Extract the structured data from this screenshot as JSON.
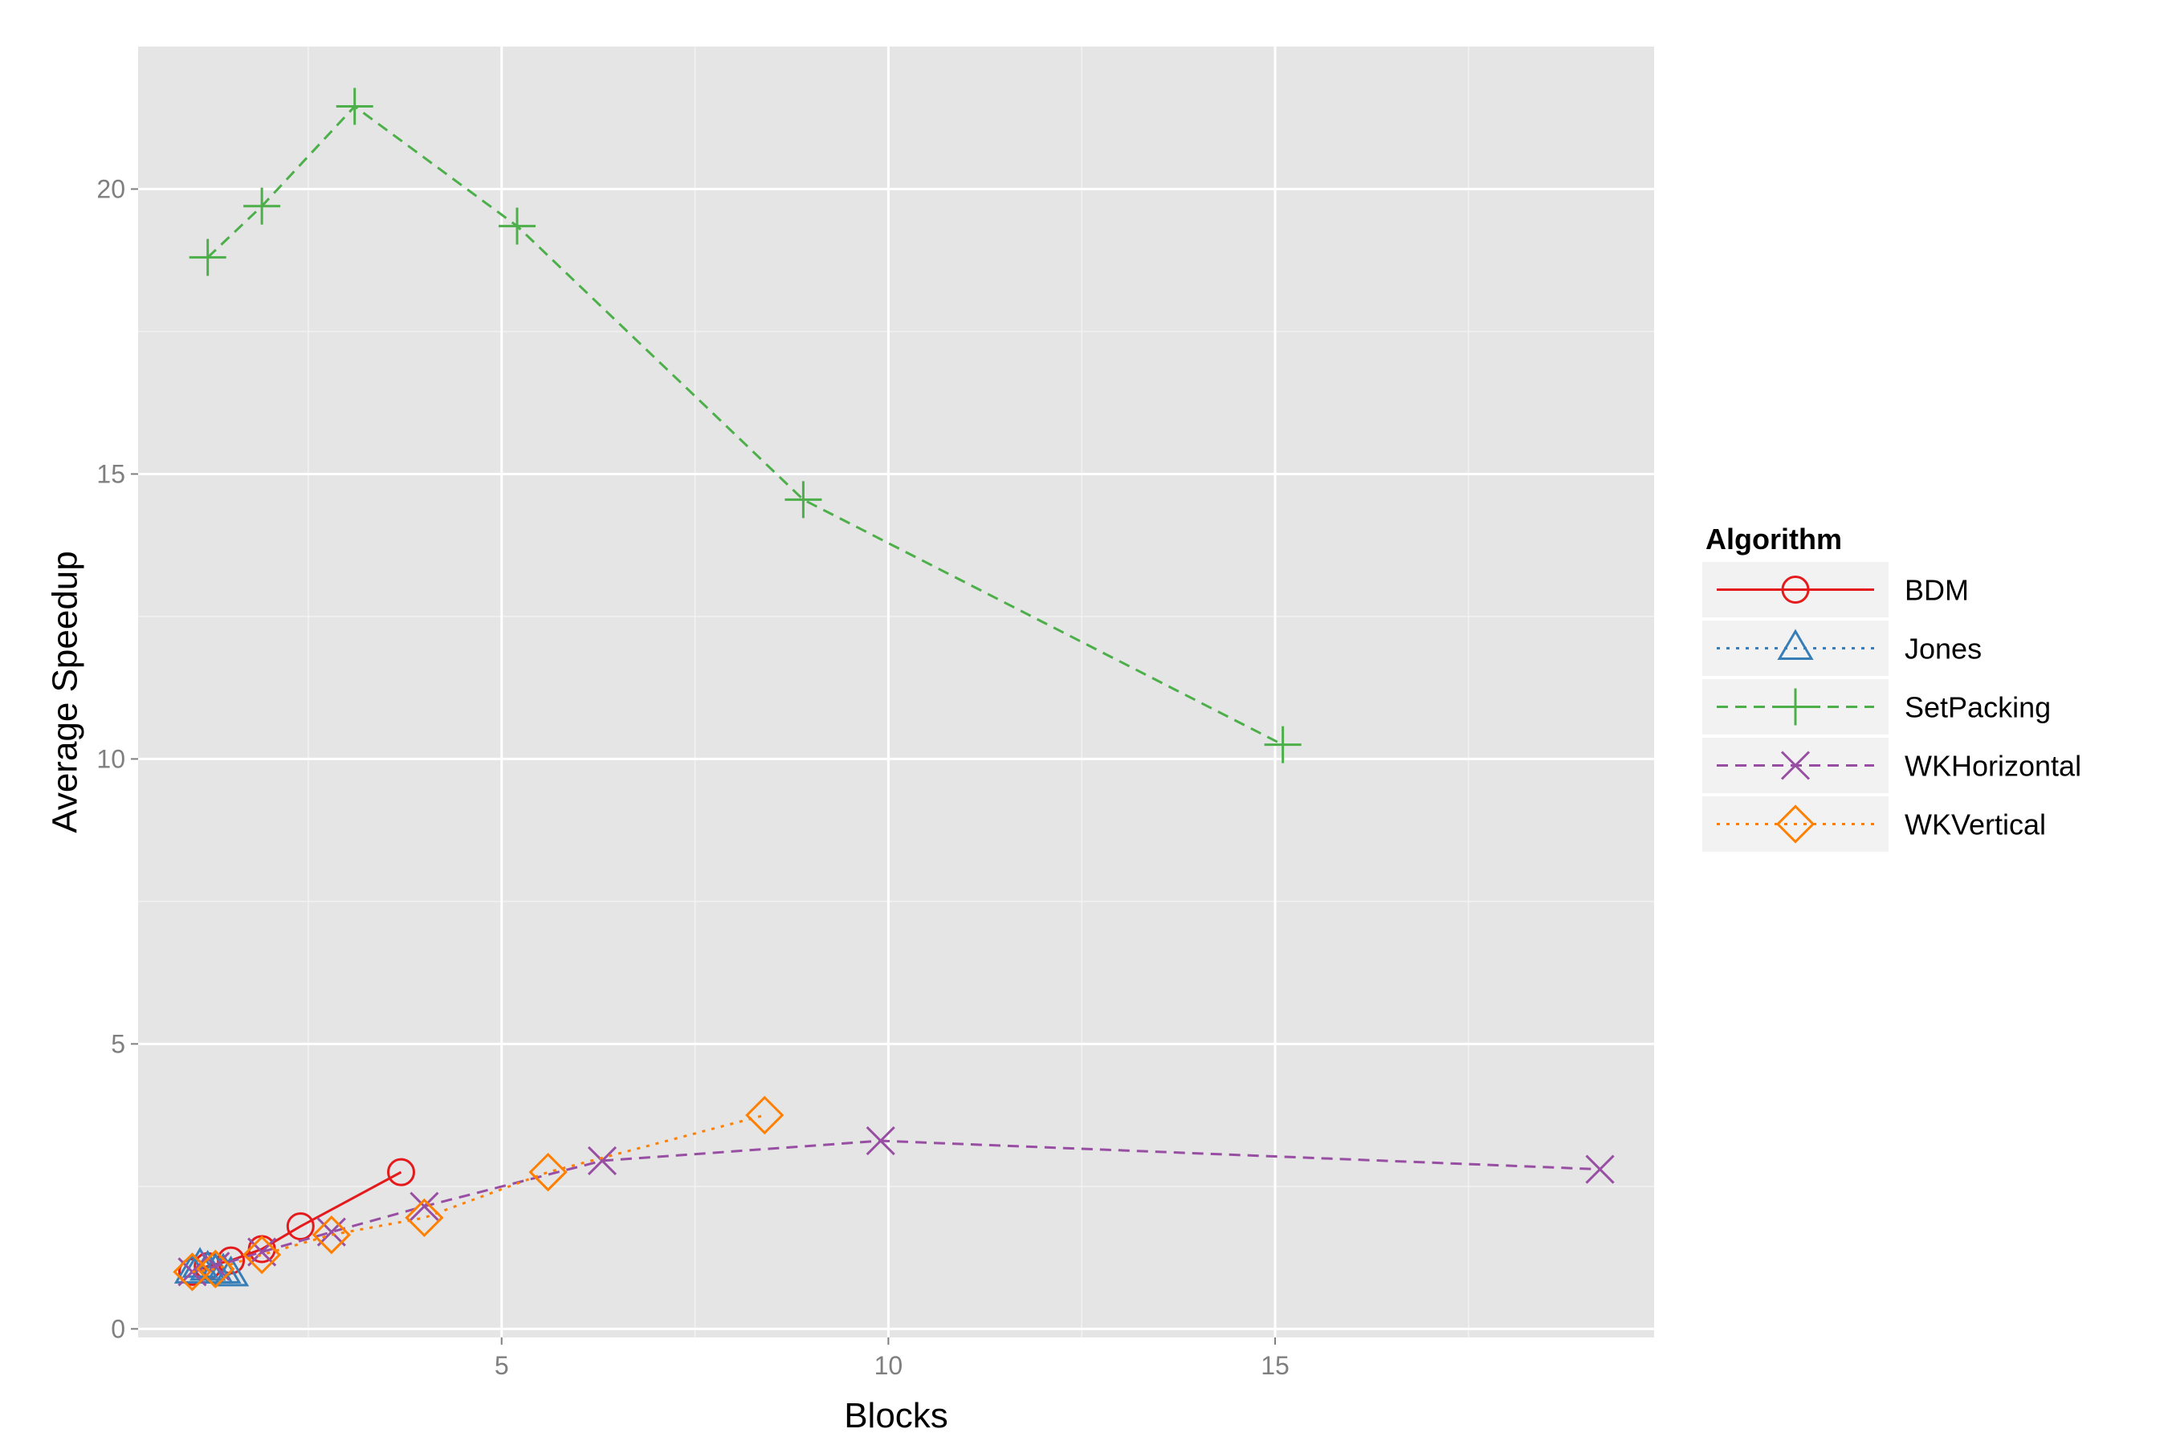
{
  "chart_data": {
    "type": "line",
    "title": "",
    "xlabel": "Blocks",
    "ylabel": "Average Speedup",
    "xlim": [
      0.3,
      19.9
    ],
    "ylim": [
      -0.15,
      22.5
    ],
    "x_ticks": [
      5,
      10,
      15
    ],
    "x_tick_labels": [
      "5",
      "10",
      "15"
    ],
    "y_ticks": [
      0,
      5,
      10,
      15,
      20
    ],
    "y_tick_labels": [
      "0",
      "5",
      "10",
      "15",
      "20"
    ],
    "grid": true,
    "legend": {
      "title": "Algorithm",
      "position": "right"
    },
    "series": [
      {
        "name": "BDM",
        "color": "#E41A1C",
        "dash": "solid",
        "marker": "circle",
        "x": [
          1.0,
          1.2,
          1.5,
          1.9,
          2.4,
          3.7
        ],
        "y": [
          1.0,
          1.1,
          1.2,
          1.4,
          1.8,
          2.75
        ]
      },
      {
        "name": "Jones",
        "color": "#377EB8",
        "dash": "dotted",
        "marker": "triangle",
        "x": [
          1.0,
          1.1,
          1.2,
          1.3,
          1.4,
          1.5
        ],
        "y": [
          1.0,
          1.1,
          1.05,
          1.0,
          1.0,
          0.95
        ]
      },
      {
        "name": "SetPacking",
        "color": "#4DAF4A",
        "dash": "dashed",
        "marker": "plus",
        "x": [
          1.2,
          1.9,
          3.1,
          5.2,
          8.9,
          15.1
        ],
        "y": [
          18.8,
          19.7,
          21.45,
          19.35,
          14.55,
          10.25
        ]
      },
      {
        "name": "WKHorizontal",
        "color": "#984EA3",
        "dash": "dashed",
        "marker": "cross",
        "x": [
          1.0,
          1.3,
          1.9,
          2.8,
          4.0,
          6.3,
          9.9,
          19.2
        ],
        "y": [
          1.0,
          1.1,
          1.35,
          1.7,
          2.15,
          2.95,
          3.3,
          2.8
        ]
      },
      {
        "name": "WKVertical",
        "color": "#FF7F00",
        "dash": "dotted",
        "marker": "diamond",
        "x": [
          1.0,
          1.3,
          1.9,
          2.8,
          4.0,
          5.6,
          8.4
        ],
        "y": [
          1.0,
          1.05,
          1.3,
          1.65,
          1.95,
          2.75,
          3.75
        ]
      }
    ]
  }
}
